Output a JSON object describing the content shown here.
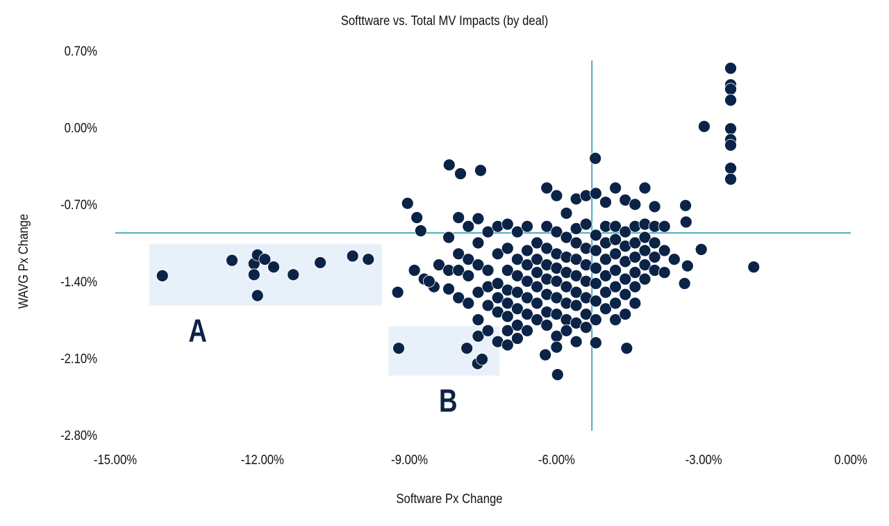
{
  "chart_data": {
    "type": "scatter",
    "title": "Softtware vs. Total MV Impacts (by deal)",
    "xlabel": "Software Px Change",
    "ylabel": "WAVG Px Change",
    "xlim": [
      -15,
      0
    ],
    "ylim": [
      -2.8,
      0.7
    ],
    "x_ticks": [
      -15,
      -12,
      -9,
      -6,
      -3,
      0
    ],
    "x_tick_labels": [
      "-15.00%",
      "-12.00%",
      "-9.00%",
      "-6.00%",
      "-3.00%",
      "0.00%"
    ],
    "y_ticks": [
      0.7,
      0,
      -0.7,
      -1.4,
      -2.1,
      -2.8
    ],
    "y_tick_labels": [
      "0.70%",
      "0.00%",
      "-0.70%",
      "-1.40%",
      "-2.10%",
      "-2.80%"
    ],
    "grid": false,
    "legend": "none",
    "colors": {
      "points": "#0b2346",
      "reference_lines": "#1e8fa6",
      "highlight_box": "#e8f1fa",
      "text": "#111111",
      "box_label": "#0b2346"
    },
    "reference_lines": {
      "x": -5.28,
      "y": -0.96
    },
    "highlight_boxes": [
      {
        "label": "A",
        "x": [
          -14.31,
          -9.56
        ],
        "y": [
          -1.62,
          -1.06
        ]
      },
      {
        "label": "B",
        "x": [
          -9.43,
          -7.16
        ],
        "y": [
          -2.26,
          -1.81
        ]
      }
    ],
    "points": [
      [
        -14.04,
        -1.35
      ],
      [
        -12.62,
        -1.21
      ],
      [
        -12.17,
        -1.24
      ],
      [
        -12.1,
        -1.16
      ],
      [
        -11.95,
        -1.2
      ],
      [
        -11.77,
        -1.27
      ],
      [
        -12.17,
        -1.34
      ],
      [
        -12.1,
        -1.53
      ],
      [
        -11.37,
        -1.34
      ],
      [
        -10.82,
        -1.23
      ],
      [
        -10.16,
        -1.17
      ],
      [
        -9.84,
        -1.2
      ],
      [
        -9.24,
        -1.5
      ],
      [
        -9.22,
        -2.01
      ],
      [
        -9.04,
        -0.69
      ],
      [
        -8.85,
        -0.82
      ],
      [
        -8.77,
        -0.94
      ],
      [
        -8.19,
        -0.34
      ],
      [
        -7.96,
        -0.42
      ],
      [
        -7.55,
        -0.39
      ],
      [
        -7.83,
        -2.01
      ],
      [
        -7.61,
        -2.15
      ],
      [
        -7.52,
        -2.11
      ],
      [
        -2.45,
        0.54
      ],
      [
        -2.45,
        0.39
      ],
      [
        -2.45,
        0.35
      ],
      [
        -2.45,
        0.25
      ],
      [
        -2.45,
        -0.01
      ],
      [
        -2.45,
        -0.11
      ],
      [
        -2.45,
        -0.16
      ],
      [
        -2.45,
        -0.37
      ],
      [
        -2.45,
        -0.47
      ],
      [
        -2.99,
        0.01
      ],
      [
        -1.98,
        -1.27
      ],
      [
        -5.21,
        -0.28
      ],
      [
        -5.98,
        -2.25
      ],
      [
        -4.57,
        -2.01
      ],
      [
        -6.23,
        -2.07
      ],
      [
        -3.05,
        -1.11
      ],
      [
        -3.36,
        -0.86
      ],
      [
        -3.39,
        -1.42
      ],
      [
        -3.33,
        -1.26
      ],
      [
        -3.37,
        -0.71
      ],
      [
        -8.9,
        -1.3
      ],
      [
        -8.7,
        -1.38
      ],
      [
        -8.5,
        -1.45
      ],
      [
        -8.4,
        -1.25
      ],
      [
        -8.6,
        -1.4
      ],
      [
        -8.2,
        -1.0
      ],
      [
        -8.2,
        -1.3
      ],
      [
        -8.2,
        -1.47
      ],
      [
        -8.0,
        -0.82
      ],
      [
        -8.0,
        -1.15
      ],
      [
        -8.0,
        -1.3
      ],
      [
        -8.0,
        -1.55
      ],
      [
        -7.8,
        -0.9
      ],
      [
        -7.8,
        -1.2
      ],
      [
        -7.8,
        -1.35
      ],
      [
        -7.8,
        -1.6
      ],
      [
        -7.6,
        -0.83
      ],
      [
        -7.6,
        -1.05
      ],
      [
        -7.6,
        -1.25
      ],
      [
        -7.6,
        -1.5
      ],
      [
        -7.6,
        -1.75
      ],
      [
        -7.6,
        -1.9
      ],
      [
        -7.4,
        -0.95
      ],
      [
        -7.4,
        -1.3
      ],
      [
        -7.4,
        -1.45
      ],
      [
        -7.4,
        -1.62
      ],
      [
        -7.4,
        -1.85
      ],
      [
        -7.2,
        -0.9
      ],
      [
        -7.2,
        -1.15
      ],
      [
        -7.2,
        -1.42
      ],
      [
        -7.2,
        -1.55
      ],
      [
        -7.2,
        -1.68
      ],
      [
        -7.2,
        -1.95
      ],
      [
        -7.0,
        -0.88
      ],
      [
        -7.0,
        -1.1
      ],
      [
        -7.0,
        -1.3
      ],
      [
        -7.0,
        -1.48
      ],
      [
        -7.0,
        -1.6
      ],
      [
        -7.0,
        -1.72
      ],
      [
        -7.0,
        -1.85
      ],
      [
        -7.0,
        -1.98
      ],
      [
        -6.8,
        -0.95
      ],
      [
        -6.8,
        -1.2
      ],
      [
        -6.8,
        -1.35
      ],
      [
        -6.8,
        -1.5
      ],
      [
        -6.8,
        -1.65
      ],
      [
        -6.8,
        -1.8
      ],
      [
        -6.8,
        -1.92
      ],
      [
        -6.6,
        -0.9
      ],
      [
        -6.6,
        -1.12
      ],
      [
        -6.6,
        -1.25
      ],
      [
        -6.6,
        -1.4
      ],
      [
        -6.6,
        -1.55
      ],
      [
        -6.6,
        -1.7
      ],
      [
        -6.6,
        -1.85
      ],
      [
        -6.4,
        -1.05
      ],
      [
        -6.4,
        -1.2
      ],
      [
        -6.4,
        -1.32
      ],
      [
        -6.4,
        -1.45
      ],
      [
        -6.4,
        -1.6
      ],
      [
        -6.4,
        -1.75
      ],
      [
        -6.2,
        -0.55
      ],
      [
        -6.2,
        -0.9
      ],
      [
        -6.2,
        -1.1
      ],
      [
        -6.2,
        -1.25
      ],
      [
        -6.2,
        -1.38
      ],
      [
        -6.2,
        -1.52
      ],
      [
        -6.2,
        -1.68
      ],
      [
        -6.2,
        -1.8
      ],
      [
        -6.0,
        -0.62
      ],
      [
        -6.0,
        -0.95
      ],
      [
        -6.0,
        -1.15
      ],
      [
        -6.0,
        -1.28
      ],
      [
        -6.0,
        -1.4
      ],
      [
        -6.0,
        -1.55
      ],
      [
        -6.0,
        -1.7
      ],
      [
        -6.0,
        -1.9
      ],
      [
        -6.0,
        -2.0
      ],
      [
        -5.8,
        -0.78
      ],
      [
        -5.8,
        -1.0
      ],
      [
        -5.8,
        -1.18
      ],
      [
        -5.8,
        -1.32
      ],
      [
        -5.8,
        -1.45
      ],
      [
        -5.8,
        -1.6
      ],
      [
        -5.8,
        -1.75
      ],
      [
        -5.8,
        -1.85
      ],
      [
        -5.6,
        -0.65
      ],
      [
        -5.6,
        -0.92
      ],
      [
        -5.6,
        -1.05
      ],
      [
        -5.6,
        -1.2
      ],
      [
        -5.6,
        -1.35
      ],
      [
        -5.6,
        -1.5
      ],
      [
        -5.6,
        -1.62
      ],
      [
        -5.6,
        -1.78
      ],
      [
        -5.6,
        -1.95
      ],
      [
        -5.4,
        -0.62
      ],
      [
        -5.4,
        -0.88
      ],
      [
        -5.4,
        -1.1
      ],
      [
        -5.4,
        -1.25
      ],
      [
        -5.4,
        -1.4
      ],
      [
        -5.4,
        -1.55
      ],
      [
        -5.4,
        -1.7
      ],
      [
        -5.4,
        -1.82
      ],
      [
        -5.2,
        -0.6
      ],
      [
        -5.2,
        -0.98
      ],
      [
        -5.2,
        -1.12
      ],
      [
        -5.2,
        -1.28
      ],
      [
        -5.2,
        -1.42
      ],
      [
        -5.2,
        -1.58
      ],
      [
        -5.2,
        -1.75
      ],
      [
        -5.2,
        -1.96
      ],
      [
        -5.0,
        -0.68
      ],
      [
        -5.0,
        -0.9
      ],
      [
        -5.0,
        -1.05
      ],
      [
        -5.0,
        -1.2
      ],
      [
        -5.0,
        -1.35
      ],
      [
        -5.0,
        -1.5
      ],
      [
        -5.0,
        -1.65
      ],
      [
        -4.8,
        -0.55
      ],
      [
        -4.8,
        -0.9
      ],
      [
        -4.8,
        -1.02
      ],
      [
        -4.8,
        -1.15
      ],
      [
        -4.8,
        -1.3
      ],
      [
        -4.8,
        -1.45
      ],
      [
        -4.8,
        -1.6
      ],
      [
        -4.8,
        -1.75
      ],
      [
        -4.6,
        -0.66
      ],
      [
        -4.6,
        -0.95
      ],
      [
        -4.6,
        -1.08
      ],
      [
        -4.6,
        -1.22
      ],
      [
        -4.6,
        -1.38
      ],
      [
        -4.6,
        -1.52
      ],
      [
        -4.6,
        -1.7
      ],
      [
        -4.4,
        -0.7
      ],
      [
        -4.4,
        -0.9
      ],
      [
        -4.4,
        -1.05
      ],
      [
        -4.4,
        -1.18
      ],
      [
        -4.4,
        -1.32
      ],
      [
        -4.4,
        -1.45
      ],
      [
        -4.4,
        -1.6
      ],
      [
        -4.2,
        -0.55
      ],
      [
        -4.2,
        -0.88
      ],
      [
        -4.2,
        -1.0
      ],
      [
        -4.2,
        -1.12
      ],
      [
        -4.2,
        -1.25
      ],
      [
        -4.2,
        -1.38
      ],
      [
        -4.0,
        -0.72
      ],
      [
        -4.0,
        -0.9
      ],
      [
        -4.0,
        -1.05
      ],
      [
        -4.0,
        -1.18
      ],
      [
        -4.0,
        -1.3
      ],
      [
        -3.8,
        -0.9
      ],
      [
        -3.8,
        -1.12
      ],
      [
        -3.8,
        -1.32
      ],
      [
        -3.6,
        -1.2
      ]
    ]
  }
}
